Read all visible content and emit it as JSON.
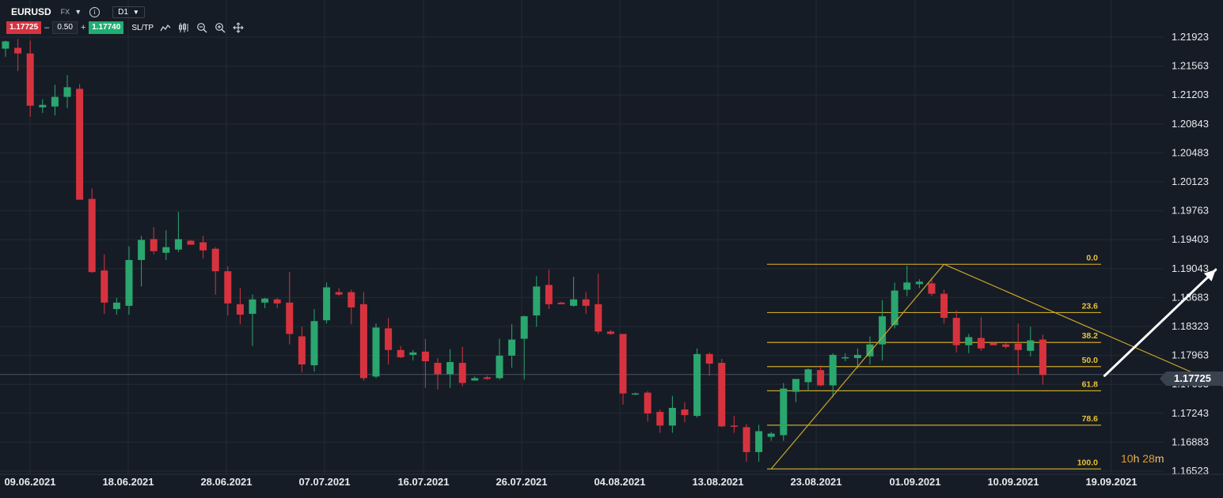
{
  "toolbar": {
    "symbol": "EURUSD",
    "market": "FX",
    "timeframe": "D1",
    "sell_price": "1.17725",
    "quantity": "0.50",
    "buy_price": "1.17740",
    "sltp_label": "SL/TP",
    "minus_label": "–",
    "plus_label": "+",
    "tools": [
      "line-chart-icon",
      "candles-icon",
      "zoom-out-icon",
      "zoom-in-icon",
      "crosshair-icon"
    ]
  },
  "current_price": "1.17725",
  "countdown": {
    "hours": "10",
    "h_unit": "h",
    "minutes": "28",
    "m_unit": "m"
  },
  "colors": {
    "up": "#2aa66f",
    "down": "#d7333f",
    "fib": "#c8a62a",
    "background": "#161c25",
    "arrow": "#ffffff"
  },
  "chart_data": {
    "type": "candlestick",
    "symbol": "EURUSD",
    "timeframe": "D1",
    "y_ticks": [
      "1.21923",
      "1.21563",
      "1.21203",
      "1.20843",
      "1.20483",
      "1.20123",
      "1.19763",
      "1.19403",
      "1.19043",
      "1.18683",
      "1.18323",
      "1.17963",
      "1.17603",
      "1.17243",
      "1.16883",
      "1.16523"
    ],
    "ylim": [
      1.164,
      1.2215
    ],
    "x_tick_labels": [
      "09.06.2021",
      "18.06.2021",
      "28.06.2021",
      "07.07.2021",
      "16.07.2021",
      "26.07.2021",
      "04.08.2021",
      "13.08.2021",
      "23.08.2021",
      "01.09.2021",
      "10.09.2021",
      "19.09.2021"
    ],
    "candles": [
      {
        "d": "07.06.2021",
        "o": 1.2178,
        "h": 1.2188,
        "l": 1.2168,
        "c": 1.2187
      },
      {
        "d": "08.06.2021",
        "o": 1.2179,
        "h": 1.219,
        "l": 1.215,
        "c": 1.2172
      },
      {
        "d": "09.06.2021",
        "o": 1.2172,
        "h": 1.2188,
        "l": 1.2093,
        "c": 1.2107
      },
      {
        "d": "10.06.2021",
        "o": 1.2105,
        "h": 1.2115,
        "l": 1.2098,
        "c": 1.2108
      },
      {
        "d": "11.06.2021",
        "o": 1.2106,
        "h": 1.2133,
        "l": 1.2095,
        "c": 1.2118
      },
      {
        "d": "14.06.2021",
        "o": 1.2118,
        "h": 1.2145,
        "l": 1.2104,
        "c": 1.213
      },
      {
        "d": "15.06.2021",
        "o": 1.2128,
        "h": 1.2134,
        "l": 1.1992,
        "c": 1.199
      },
      {
        "d": "16.06.2021",
        "o": 1.1991,
        "h": 1.2004,
        "l": 1.1899,
        "c": 1.19
      },
      {
        "d": "17.06.2021",
        "o": 1.1902,
        "h": 1.1922,
        "l": 1.1848,
        "c": 1.1862
      },
      {
        "d": "18.06.2021",
        "o": 1.1854,
        "h": 1.1868,
        "l": 1.1847,
        "c": 1.1862
      },
      {
        "d": "21.06.2021",
        "o": 1.1858,
        "h": 1.1932,
        "l": 1.1847,
        "c": 1.1915
      },
      {
        "d": "22.06.2021",
        "o": 1.1915,
        "h": 1.1945,
        "l": 1.1882,
        "c": 1.194
      },
      {
        "d": "23.06.2021",
        "o": 1.1941,
        "h": 1.1956,
        "l": 1.1922,
        "c": 1.1926
      },
      {
        "d": "24.06.2021",
        "o": 1.1924,
        "h": 1.1952,
        "l": 1.1915,
        "c": 1.1931
      },
      {
        "d": "25.06.2021",
        "o": 1.1928,
        "h": 1.1975,
        "l": 1.1925,
        "c": 1.1941
      },
      {
        "d": "28.06.2021",
        "o": 1.1939,
        "h": 1.194,
        "l": 1.1935,
        "c": 1.1934
      },
      {
        "d": "29.06.2021",
        "o": 1.1937,
        "h": 1.1945,
        "l": 1.1917,
        "c": 1.1927
      },
      {
        "d": "30.06.2021",
        "o": 1.1929,
        "h": 1.1931,
        "l": 1.1872,
        "c": 1.1901
      },
      {
        "d": "01.07.2021",
        "o": 1.1901,
        "h": 1.1907,
        "l": 1.1846,
        "c": 1.1861
      },
      {
        "d": "02.07.2021",
        "o": 1.186,
        "h": 1.188,
        "l": 1.1835,
        "c": 1.1847
      },
      {
        "d": "05.07.2021",
        "o": 1.1848,
        "h": 1.1872,
        "l": 1.1808,
        "c": 1.1866
      },
      {
        "d": "06.07.2021",
        "o": 1.1862,
        "h": 1.1868,
        "l": 1.1855,
        "c": 1.1867
      },
      {
        "d": "07.07.2021",
        "o": 1.1866,
        "h": 1.1868,
        "l": 1.1855,
        "c": 1.1861
      },
      {
        "d": "08.07.2021",
        "o": 1.1862,
        "h": 1.19,
        "l": 1.181,
        "c": 1.1823
      },
      {
        "d": "09.07.2021",
        "o": 1.182,
        "h": 1.1832,
        "l": 1.1775,
        "c": 1.1785
      },
      {
        "d": "12.07.2021",
        "o": 1.1784,
        "h": 1.1854,
        "l": 1.1776,
        "c": 1.1839
      },
      {
        "d": "13.07.2021",
        "o": 1.184,
        "h": 1.1887,
        "l": 1.1836,
        "c": 1.1881
      },
      {
        "d": "14.07.2021",
        "o": 1.1875,
        "h": 1.188,
        "l": 1.187,
        "c": 1.1872
      },
      {
        "d": "15.07.2021",
        "o": 1.1875,
        "h": 1.1878,
        "l": 1.1835,
        "c": 1.1856
      },
      {
        "d": "16.07.2021",
        "o": 1.186,
        "h": 1.1875,
        "l": 1.1765,
        "c": 1.1768
      },
      {
        "d": "19.07.2021",
        "o": 1.177,
        "h": 1.1836,
        "l": 1.1768,
        "c": 1.1831
      },
      {
        "d": "20.07.2021",
        "o": 1.183,
        "h": 1.1843,
        "l": 1.1785,
        "c": 1.1803
      },
      {
        "d": "21.07.2021",
        "o": 1.1803,
        "h": 1.1808,
        "l": 1.1793,
        "c": 1.1794
      },
      {
        "d": "22.07.2021",
        "o": 1.1797,
        "h": 1.1803,
        "l": 1.179,
        "c": 1.18
      },
      {
        "d": "23.07.2021",
        "o": 1.1801,
        "h": 1.1817,
        "l": 1.1756,
        "c": 1.1789
      },
      {
        "d": "26.07.2021",
        "o": 1.1787,
        "h": 1.1793,
        "l": 1.1754,
        "c": 1.1773
      },
      {
        "d": "27.07.2021",
        "o": 1.1773,
        "h": 1.1804,
        "l": 1.1756,
        "c": 1.1788
      },
      {
        "d": "28.07.2021",
        "o": 1.1787,
        "h": 1.1807,
        "l": 1.1758,
        "c": 1.1762
      },
      {
        "d": "29.07.2021",
        "o": 1.1765,
        "h": 1.177,
        "l": 1.1765,
        "c": 1.1768
      },
      {
        "d": "30.07.2021",
        "o": 1.1769,
        "h": 1.1771,
        "l": 1.1766,
        "c": 1.1767
      },
      {
        "d": "02.08.2021",
        "o": 1.1768,
        "h": 1.1817,
        "l": 1.1766,
        "c": 1.1796
      },
      {
        "d": "03.08.2021",
        "o": 1.1796,
        "h": 1.1835,
        "l": 1.1781,
        "c": 1.1816
      },
      {
        "d": "04.08.2021",
        "o": 1.1817,
        "h": 1.1846,
        "l": 1.1766,
        "c": 1.1845
      },
      {
        "d": "05.08.2021",
        "o": 1.1846,
        "h": 1.1895,
        "l": 1.1832,
        "c": 1.1882
      },
      {
        "d": "06.08.2021",
        "o": 1.1884,
        "h": 1.1903,
        "l": 1.1854,
        "c": 1.186
      },
      {
        "d": "09.08.2021",
        "o": 1.1862,
        "h": 1.1863,
        "l": 1.1861,
        "c": 1.186
      },
      {
        "d": "10.08.2021",
        "o": 1.1858,
        "h": 1.1894,
        "l": 1.1857,
        "c": 1.1866
      },
      {
        "d": "11.08.2021",
        "o": 1.1866,
        "h": 1.1875,
        "l": 1.1848,
        "c": 1.1858
      },
      {
        "d": "12.08.2021",
        "o": 1.186,
        "h": 1.1898,
        "l": 1.1823,
        "c": 1.1826
      },
      {
        "d": "13.08.2021",
        "o": 1.1826,
        "h": 1.1828,
        "l": 1.1822,
        "c": 1.1823
      },
      {
        "d": "16.08.2021",
        "o": 1.1823,
        "h": 1.1823,
        "l": 1.1735,
        "c": 1.1749
      },
      {
        "d": "17.08.2021",
        "o": 1.1748,
        "h": 1.175,
        "l": 1.1747,
        "c": 1.1749
      },
      {
        "d": "18.08.2021",
        "o": 1.175,
        "h": 1.1752,
        "l": 1.1714,
        "c": 1.1724
      },
      {
        "d": "19.08.2021",
        "o": 1.1726,
        "h": 1.1729,
        "l": 1.17,
        "c": 1.1709
      },
      {
        "d": "20.08.2021",
        "o": 1.1709,
        "h": 1.1746,
        "l": 1.17,
        "c": 1.1731
      },
      {
        "d": "23.08.2021",
        "o": 1.1729,
        "h": 1.1738,
        "l": 1.1713,
        "c": 1.1722
      },
      {
        "d": "24.08.2021",
        "o": 1.1721,
        "h": 1.1805,
        "l": 1.1719,
        "c": 1.1798
      },
      {
        "d": "25.08.2021",
        "o": 1.1798,
        "h": 1.18,
        "l": 1.1771,
        "c": 1.1786
      },
      {
        "d": "26.08.2021",
        "o": 1.1787,
        "h": 1.1792,
        "l": 1.1707,
        "c": 1.1708
      },
      {
        "d": "27.08.2021",
        "o": 1.1709,
        "h": 1.1721,
        "l": 1.17,
        "c": 1.1708
      },
      {
        "d": "30.08.2021",
        "o": 1.1707,
        "h": 1.1711,
        "l": 1.1664,
        "c": 1.1676
      },
      {
        "d": "31.08.2021",
        "o": 1.1676,
        "h": 1.171,
        "l": 1.1664,
        "c": 1.1702
      },
      {
        "d": "01.09.2021",
        "o": 1.1695,
        "h": 1.1701,
        "l": 1.169,
        "c": 1.1699
      },
      {
        "d": "02.09.2021",
        "o": 1.1697,
        "h": 1.1762,
        "l": 1.169,
        "c": 1.1755
      },
      {
        "d": "03.09.2021",
        "o": 1.1751,
        "h": 1.1766,
        "l": 1.1738,
        "c": 1.1767
      },
      {
        "d": "06.09.2021",
        "o": 1.1763,
        "h": 1.178,
        "l": 1.1752,
        "c": 1.1779
      },
      {
        "d": "07.09.2021",
        "o": 1.1778,
        "h": 1.1784,
        "l": 1.1758,
        "c": 1.1759
      },
      {
        "d": "08.09.2021",
        "o": 1.1759,
        "h": 1.1799,
        "l": 1.1744,
        "c": 1.1797
      },
      {
        "d": "09.09.2021",
        "o": 1.1793,
        "h": 1.1799,
        "l": 1.1789,
        "c": 1.1794
      },
      {
        "d": "10.09.2021",
        "o": 1.1793,
        "h": 1.1805,
        "l": 1.178,
        "c": 1.1797
      },
      {
        "d": "13.09.2021",
        "o": 1.1795,
        "h": 1.182,
        "l": 1.1785,
        "c": 1.181
      },
      {
        "d": "14.09.2021",
        "o": 1.181,
        "h": 1.1865,
        "l": 1.179,
        "c": 1.1845
      },
      {
        "d": "15.09.2021",
        "o": 1.1834,
        "h": 1.1887,
        "l": 1.183,
        "c": 1.1877
      },
      {
        "d": "16.09.2021",
        "o": 1.1878,
        "h": 1.1908,
        "l": 1.187,
        "c": 1.1887
      },
      {
        "d": "17.09.2021",
        "o": 1.1885,
        "h": 1.1891,
        "l": 1.188,
        "c": 1.1888
      },
      {
        "d": "20.09.2021",
        "o": 1.1886,
        "h": 1.1893,
        "l": 1.187,
        "c": 1.1873
      },
      {
        "d": "21.09.2021",
        "o": 1.1873,
        "h": 1.1878,
        "l": 1.1836,
        "c": 1.1843
      },
      {
        "d": "22.09.2021",
        "o": 1.1843,
        "h": 1.1852,
        "l": 1.18,
        "c": 1.1809
      },
      {
        "d": "23.09.2021",
        "o": 1.1809,
        "h": 1.1823,
        "l": 1.1799,
        "c": 1.1819
      },
      {
        "d": "24.09.2021",
        "o": 1.1818,
        "h": 1.1844,
        "l": 1.1802,
        "c": 1.1805
      },
      {
        "d": "27.09.2021",
        "o": 1.1812,
        "h": 1.1812,
        "l": 1.1809,
        "c": 1.1809
      },
      {
        "d": "28.09.2021",
        "o": 1.181,
        "h": 1.1812,
        "l": 1.1805,
        "c": 1.1807
      },
      {
        "d": "29.09.2021",
        "o": 1.1811,
        "h": 1.1836,
        "l": 1.1773,
        "c": 1.1803
      },
      {
        "d": "30.09.2021",
        "o": 1.1802,
        "h": 1.1832,
        "l": 1.1795,
        "c": 1.1815
      },
      {
        "d": "01.10.2021",
        "o": 1.1816,
        "h": 1.1822,
        "l": 1.176,
        "c": 1.1772
      }
    ],
    "fibonacci": {
      "high": 1.19097,
      "low": 1.1655,
      "levels": [
        {
          "label": "0.0",
          "ratio": 0.0
        },
        {
          "label": "23.6",
          "ratio": 0.236
        },
        {
          "label": "38.2",
          "ratio": 0.382
        },
        {
          "label": "50.0",
          "ratio": 0.5
        },
        {
          "label": "61.8",
          "ratio": 0.618
        },
        {
          "label": "78.6",
          "ratio": 0.786
        },
        {
          "label": "100.0",
          "ratio": 1.0
        }
      ]
    },
    "annotations": [
      {
        "type": "trendline",
        "name": "fib-anchor-line",
        "from_index": 62,
        "from_price": 1.1655,
        "to_index": 76,
        "to_price": 1.19097
      },
      {
        "type": "trendline",
        "name": "descending-trendline",
        "from_index": 76,
        "from_price": 1.19097,
        "to_index": 100,
        "to_price": 1.1749
      },
      {
        "type": "arrow",
        "name": "bullish-arrow",
        "from_index": 89,
        "from_price": 1.1771,
        "to_index": 98,
        "to_price": 1.1903
      }
    ],
    "current_price": 1.17725,
    "grid": true
  }
}
